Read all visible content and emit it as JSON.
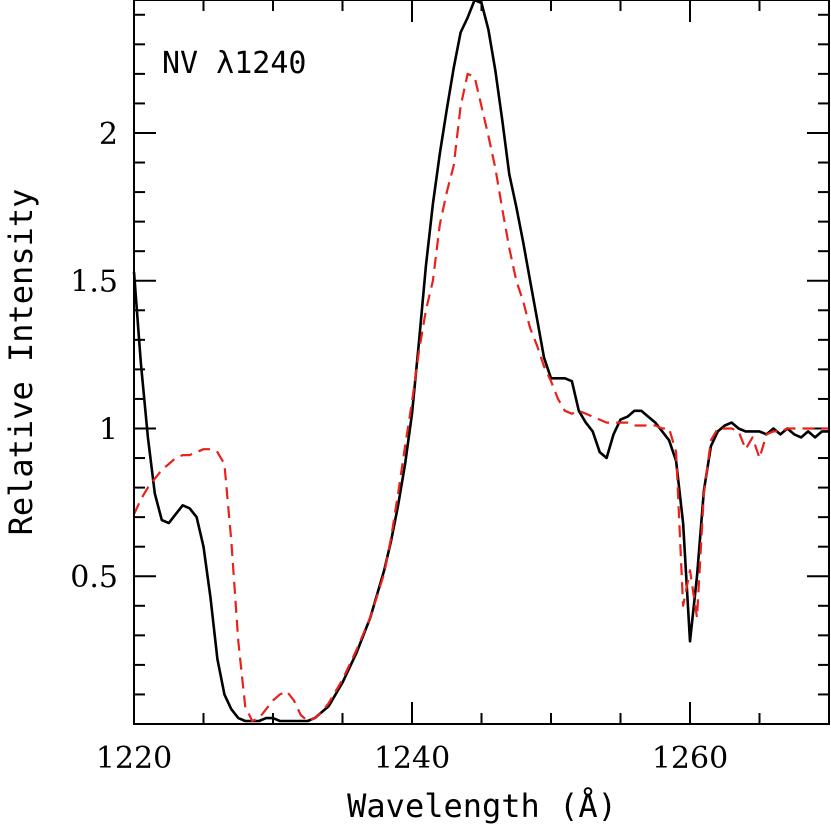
{
  "chart_data": {
    "type": "line",
    "annotation": "NV λ1240",
    "xlabel": "Wavelength (Å)",
    "ylabel": "Relative Intensity",
    "xlim": [
      1220,
      1270
    ],
    "ylim": [
      0,
      2.45
    ],
    "x_ticks_labeled": [
      1220,
      1240,
      1260
    ],
    "y_ticks_labeled": [
      0.5,
      1,
      1.5,
      2
    ],
    "x_tick_labels": [
      "1220",
      "1240",
      "1260"
    ],
    "y_tick_labels": [
      "0.5",
      "1",
      "1.5",
      "2"
    ],
    "x_minor_step": 5,
    "y_minor_step": 0.1,
    "grid": false,
    "series": [
      {
        "style": "solid",
        "color": "#000000",
        "x": [
          1220,
          1220.5,
          1221,
          1221.5,
          1222,
          1222.5,
          1223,
          1223.5,
          1224,
          1224.5,
          1225,
          1225.5,
          1226,
          1226.5,
          1227,
          1227.5,
          1228,
          1228.5,
          1229,
          1229.5,
          1230,
          1230.5,
          1231,
          1231.5,
          1232,
          1232.5,
          1233,
          1233.5,
          1234,
          1235,
          1236,
          1237,
          1238,
          1238.5,
          1239,
          1239.5,
          1240,
          1240.5,
          1241,
          1241.5,
          1242,
          1242.5,
          1243,
          1243.5,
          1244,
          1244.5,
          1245,
          1245.5,
          1246,
          1246.5,
          1247,
          1247.5,
          1248,
          1248.5,
          1249,
          1249.5,
          1250,
          1250.5,
          1251,
          1251.5,
          1252,
          1252.5,
          1253,
          1253.5,
          1254,
          1254.5,
          1255,
          1255.5,
          1256,
          1256.5,
          1257,
          1257.5,
          1258,
          1258.5,
          1259,
          1259.5,
          1260,
          1260.5,
          1261,
          1261.5,
          1262,
          1262.5,
          1263,
          1263.5,
          1264,
          1264.5,
          1265,
          1265.5,
          1266,
          1266.5,
          1267,
          1267.5,
          1268,
          1268.5,
          1269,
          1269.5,
          1270
        ],
        "y": [
          1.53,
          1.22,
          0.97,
          0.78,
          0.69,
          0.68,
          0.71,
          0.74,
          0.73,
          0.7,
          0.6,
          0.43,
          0.22,
          0.1,
          0.05,
          0.02,
          0.01,
          0.01,
          0.01,
          0.02,
          0.02,
          0.01,
          0.01,
          0.01,
          0.01,
          0.01,
          0.02,
          0.04,
          0.06,
          0.14,
          0.24,
          0.36,
          0.52,
          0.62,
          0.74,
          0.88,
          1.05,
          1.29,
          1.55,
          1.76,
          1.93,
          2.08,
          2.22,
          2.34,
          2.39,
          2.45,
          2.44,
          2.35,
          2.21,
          2.04,
          1.86,
          1.75,
          1.63,
          1.5,
          1.37,
          1.24,
          1.17,
          1.17,
          1.17,
          1.16,
          1.06,
          1.02,
          0.99,
          0.92,
          0.9,
          0.98,
          1.03,
          1.04,
          1.06,
          1.06,
          1.04,
          1.02,
          0.99,
          0.96,
          0.89,
          0.68,
          0.28,
          0.5,
          0.79,
          0.94,
          0.99,
          1.01,
          1.02,
          1.0,
          0.99,
          0.99,
          0.99,
          0.98,
          1.0,
          0.98,
          1.0,
          0.98,
          0.97,
          0.99,
          0.97,
          0.99,
          0.99
        ]
      },
      {
        "style": "dashed",
        "color": "#e8211a",
        "x": [
          1220,
          1220.5,
          1221,
          1221.5,
          1222,
          1222.5,
          1223,
          1223.5,
          1224,
          1224.5,
          1225,
          1225.5,
          1226,
          1226.5,
          1227,
          1227.5,
          1228,
          1228.5,
          1229,
          1229.5,
          1230,
          1230.5,
          1231,
          1231.5,
          1232,
          1232.5,
          1233,
          1233.5,
          1234,
          1235,
          1236,
          1237,
          1238,
          1238.5,
          1239,
          1239.5,
          1240,
          1240.5,
          1241,
          1241.5,
          1242,
          1242.5,
          1243,
          1243.5,
          1244,
          1244.5,
          1245,
          1245.5,
          1246,
          1246.5,
          1247,
          1247.5,
          1248,
          1248.5,
          1249,
          1249.5,
          1250,
          1250.5,
          1251,
          1251.5,
          1252,
          1252.5,
          1253,
          1253.5,
          1254,
          1254.5,
          1255,
          1255.5,
          1256,
          1256.5,
          1257,
          1257.5,
          1258,
          1258.5,
          1259,
          1259.5,
          1260,
          1260.5,
          1261,
          1261.5,
          1262,
          1262.5,
          1263,
          1263.5,
          1264,
          1264.5,
          1265,
          1265.5,
          1266,
          1266.5,
          1267,
          1267.5,
          1268,
          1268.5,
          1269,
          1269.5,
          1270
        ],
        "y": [
          0.71,
          0.76,
          0.8,
          0.83,
          0.86,
          0.88,
          0.9,
          0.91,
          0.91,
          0.92,
          0.93,
          0.93,
          0.92,
          0.88,
          0.62,
          0.28,
          0.06,
          0.01,
          0.02,
          0.05,
          0.08,
          0.1,
          0.11,
          0.08,
          0.03,
          0.01,
          0.02,
          0.04,
          0.07,
          0.15,
          0.25,
          0.36,
          0.51,
          0.63,
          0.78,
          0.94,
          1.09,
          1.26,
          1.4,
          1.5,
          1.69,
          1.8,
          1.89,
          2.09,
          2.2,
          2.19,
          2.09,
          1.99,
          1.88,
          1.74,
          1.61,
          1.5,
          1.43,
          1.34,
          1.28,
          1.21,
          1.16,
          1.1,
          1.06,
          1.05,
          1.06,
          1.05,
          1.04,
          1.03,
          1.02,
          1.02,
          1.02,
          1.02,
          1.01,
          1.01,
          1.01,
          1.01,
          1.0,
          1.0,
          0.92,
          0.4,
          0.52,
          0.36,
          0.78,
          0.96,
          1.0,
          1.0,
          1.0,
          0.99,
          0.93,
          0.97,
          0.9,
          0.98,
          0.99,
          0.99,
          1.0,
          1.0,
          1.0,
          1.0,
          1.0,
          1.0,
          1.0
        ]
      }
    ]
  }
}
